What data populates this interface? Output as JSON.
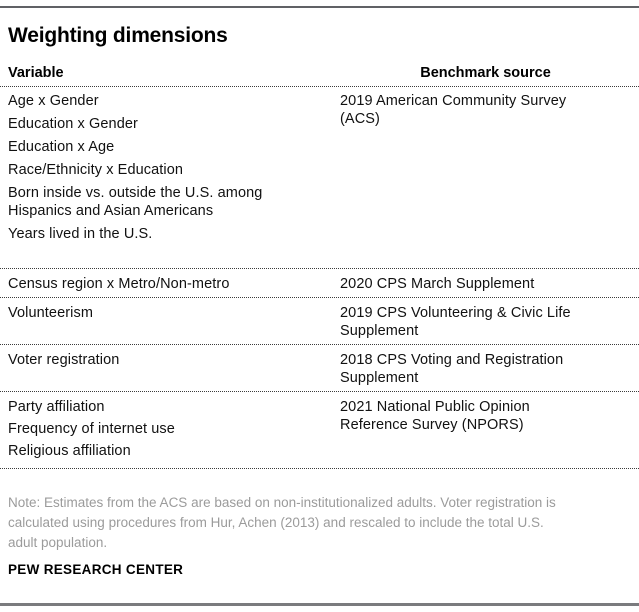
{
  "chart_data": {
    "type": "table",
    "title": "Weighting dimensions",
    "columns": [
      "Variable",
      "Benchmark source"
    ],
    "rows": [
      {
        "variables": [
          "Age x Gender",
          "Education x Gender",
          "Education x Age",
          "Race/Ethnicity x Education",
          "Born inside vs. outside the U.S. among\nHispanics and Asian Americans",
          "Years lived in the U.S."
        ],
        "source": "2019 American Community Survey\n(ACS)"
      },
      {
        "variables": [
          "Census region x Metro/Non-metro"
        ],
        "source": "2020 CPS March Supplement"
      },
      {
        "variables": [
          "Volunteerism"
        ],
        "source": "2019 CPS Volunteering & Civic Life\nSupplement"
      },
      {
        "variables": [
          "Voter registration"
        ],
        "source": "2018 CPS Voting and Registration\nSupplement"
      },
      {
        "variables": [
          "Party affiliation",
          "Frequency of internet use",
          "Religious affiliation"
        ],
        "source": "2021 National Public Opinion\nReference Survey (NPORS)"
      }
    ],
    "note": "Note: Estimates from the ACS are based on non-institutionalized adults. Voter registration is\ncalculated using procedures from Hur, Achen (2013) and rescaled to include the total U.S.\nadult population.",
    "branding": "PEW RESEARCH CENTER",
    "layout": {
      "grid": false,
      "separator_style": "dotted"
    }
  },
  "colors": {
    "text": "#111111",
    "title": "#000000",
    "note_gray": "#9b9b9b",
    "rule_gray": "#606165",
    "dotted_rule": "#3c3c3c",
    "background": "#ffffff"
  }
}
